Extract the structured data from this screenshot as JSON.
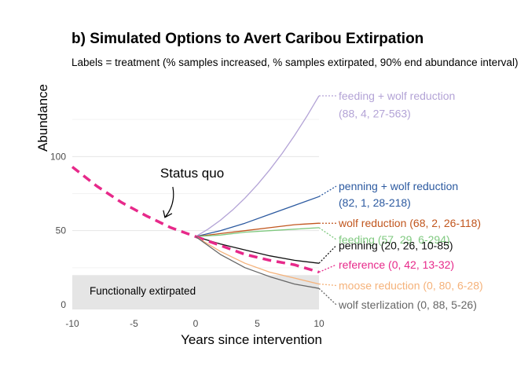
{
  "chart_data": {
    "type": "line",
    "title": "b) Simulated Options to Avert Caribou Extirpation",
    "subtitle": "Labels = treatment (% samples increased, % samples extirpated, 90% end abundance interval)",
    "xlabel": "Years since intervention",
    "ylabel": "Abundance",
    "xlim": [
      -10,
      10
    ],
    "ylim": [
      0,
      150
    ],
    "x_ticks": [
      "-10",
      "-5",
      "0",
      "5",
      "10"
    ],
    "y_ticks": [
      "0",
      "50",
      "100"
    ],
    "grid": "horizontal",
    "band": {
      "label": "Functionally extirpated",
      "y_min": 0,
      "y_max": 20,
      "color": "#e5e5e5"
    },
    "annotation": {
      "text": "Status quo",
      "x": -3,
      "y": 60
    },
    "status_quo": {
      "color": "#e7298a",
      "x": [
        -10,
        -8,
        -6,
        -4,
        -2,
        0
      ],
      "y": [
        93,
        80,
        69,
        60,
        52,
        46
      ]
    },
    "series": [
      {
        "color": "#b3a3d6",
        "x": [
          0,
          1,
          2,
          3,
          4,
          5,
          6,
          7,
          8,
          9,
          10
        ],
        "y": [
          46,
          51,
          57,
          64,
          72,
          81,
          91,
          102,
          114,
          127,
          141
        ],
        "label_lines": [
          "feeding + wolf reduction",
          "(88, 4, 27-563)"
        ],
        "label_y": [
          141,
          129
        ]
      },
      {
        "color": "#2c5aa0",
        "x": [
          0,
          2,
          4,
          6,
          8,
          10
        ],
        "y": [
          46,
          50,
          55,
          61,
          67,
          73
        ],
        "label_lines": [
          "penning + wolf reduction",
          "(82, 1, 28-218)"
        ],
        "label_y": [
          80,
          69
        ]
      },
      {
        "color": "#c1561e",
        "x": [
          0,
          2,
          4,
          6,
          8,
          10
        ],
        "y": [
          46,
          48,
          50,
          52,
          54,
          55
        ],
        "label_lines": [
          "wolf reduction (68, 2, 26-118)"
        ],
        "label_y": [
          55
        ]
      },
      {
        "color": "#7fc97f",
        "x": [
          0,
          2,
          4,
          6,
          8,
          10
        ],
        "y": [
          46,
          47,
          49,
          50,
          51,
          52
        ],
        "label_lines": [
          "feeding (57, 29, 6-294)"
        ],
        "label_y": [
          44
        ]
      },
      {
        "color": "#111111",
        "x": [
          0,
          2,
          4,
          6,
          8,
          10
        ],
        "y": [
          46,
          41,
          37,
          33,
          30,
          28
        ],
        "label_lines": [
          "penning (20, 26, 10-85)"
        ],
        "label_y": [
          40
        ]
      },
      {
        "color": "#e7298a",
        "dashed": true,
        "x": [
          0,
          2,
          4,
          6,
          8,
          10
        ],
        "y": [
          46,
          40,
          34,
          30,
          27,
          22
        ],
        "label_lines": [
          "reference (0, 42, 13-32)"
        ],
        "label_y": [
          27
        ]
      },
      {
        "color": "#f5b27a",
        "x": [
          0,
          2,
          4,
          6,
          8,
          10
        ],
        "y": [
          46,
          36,
          28,
          22,
          18,
          14
        ],
        "label_lines": [
          "moose reduction (0, 80, 6-28)"
        ],
        "label_y": [
          13
        ]
      },
      {
        "color": "#666666",
        "x": [
          0,
          2,
          4,
          6,
          8,
          10
        ],
        "y": [
          46,
          34,
          25,
          19,
          14,
          11
        ],
        "label_lines": [
          "wolf sterlization (0, 88, 5-26)"
        ],
        "label_y": [
          0
        ]
      }
    ]
  }
}
